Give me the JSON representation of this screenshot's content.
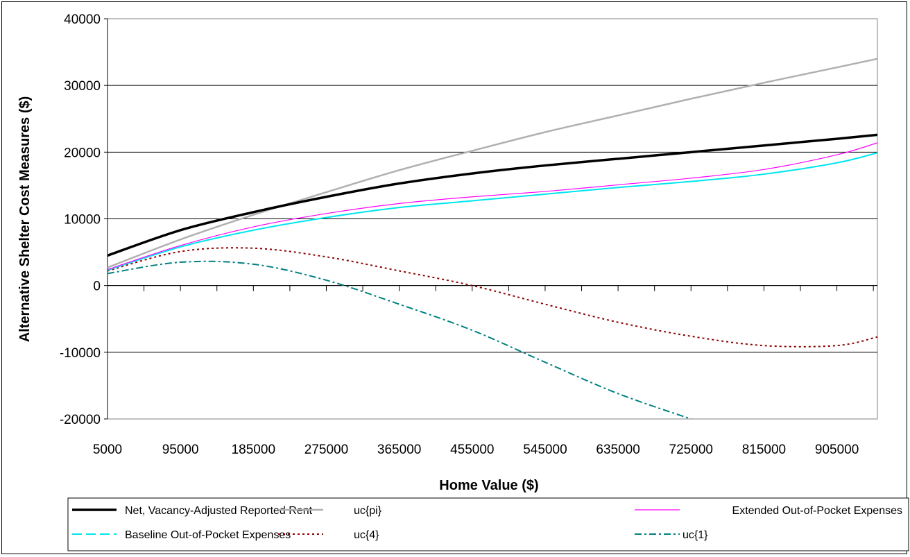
{
  "chart_data": {
    "type": "line",
    "xlabel": "Home Value ($)",
    "ylabel": "Alternative Shelter Cost Measures ($)",
    "xlim": [
      5000,
      955000
    ],
    "ylim": [
      -20000,
      40000
    ],
    "x_ticks": [
      5000,
      95000,
      185000,
      275000,
      365000,
      455000,
      545000,
      635000,
      725000,
      815000,
      905000
    ],
    "y_ticks": [
      -20000,
      -10000,
      0,
      10000,
      20000,
      30000,
      40000
    ],
    "x_tick_labels": [
      "5000",
      "95000",
      "185000",
      "275000",
      "365000",
      "455000",
      "545000",
      "635000",
      "725000",
      "815000",
      "905000"
    ],
    "y_tick_labels": [
      "-20000",
      "-10000",
      "0",
      "10000",
      "20000",
      "30000",
      "40000"
    ],
    "grid": "horizontal",
    "legend_position": "bottom",
    "series": [
      {
        "name": "Net, Vacancy-Adjusted Reported Rent",
        "color": "#000000",
        "dash": "solid",
        "width": 3.5,
        "points": [
          [
            5000,
            4500
          ],
          [
            95000,
            8300
          ],
          [
            185000,
            11000
          ],
          [
            275000,
            13300
          ],
          [
            365000,
            15300
          ],
          [
            455000,
            16800
          ],
          [
            545000,
            18000
          ],
          [
            635000,
            19000
          ],
          [
            725000,
            20000
          ],
          [
            815000,
            21000
          ],
          [
            905000,
            22000
          ],
          [
            955000,
            22600
          ]
        ]
      },
      {
        "name": "uc{pi}",
        "color": "#b0b0b0",
        "dash": "solid",
        "width": 2.5,
        "points": [
          [
            5000,
            2700
          ],
          [
            95000,
            6900
          ],
          [
            185000,
            10600
          ],
          [
            275000,
            14000
          ],
          [
            365000,
            17300
          ],
          [
            455000,
            20200
          ],
          [
            545000,
            23000
          ],
          [
            635000,
            25500
          ],
          [
            725000,
            28000
          ],
          [
            815000,
            30400
          ],
          [
            905000,
            32700
          ],
          [
            955000,
            34000
          ]
        ]
      },
      {
        "name": "Extended Out-of-Pocket Expenses",
        "color": "#ff00ff",
        "dash": "solid",
        "width": 1.2,
        "points": [
          [
            5000,
            2400
          ],
          [
            95000,
            6000
          ],
          [
            185000,
            8800
          ],
          [
            275000,
            10800
          ],
          [
            365000,
            12300
          ],
          [
            455000,
            13300
          ],
          [
            545000,
            14100
          ],
          [
            635000,
            15100
          ],
          [
            725000,
            16100
          ],
          [
            815000,
            17400
          ],
          [
            905000,
            19600
          ],
          [
            955000,
            21400
          ]
        ]
      },
      {
        "name": "Baseline Out-of-Pocket Expenses",
        "color": "#00e5ee",
        "dash": "solid",
        "width": 2,
        "points": [
          [
            5000,
            2300
          ],
          [
            95000,
            5800
          ],
          [
            185000,
            8300
          ],
          [
            275000,
            10200
          ],
          [
            365000,
            11700
          ],
          [
            455000,
            12700
          ],
          [
            545000,
            13700
          ],
          [
            635000,
            14700
          ],
          [
            725000,
            15600
          ],
          [
            815000,
            16700
          ],
          [
            905000,
            18400
          ],
          [
            955000,
            19900
          ]
        ]
      },
      {
        "name": "uc{4}",
        "color": "#8b0000",
        "dash": "dotted",
        "width": 2,
        "points": [
          [
            5000,
            2200
          ],
          [
            95000,
            5100
          ],
          [
            185000,
            5600
          ],
          [
            275000,
            4300
          ],
          [
            365000,
            2200
          ],
          [
            455000,
            0
          ],
          [
            545000,
            -2800
          ],
          [
            635000,
            -5500
          ],
          [
            725000,
            -7600
          ],
          [
            815000,
            -9000
          ],
          [
            905000,
            -9000
          ],
          [
            955000,
            -7700
          ]
        ]
      },
      {
        "name": "uc{1}",
        "color": "#008080",
        "dash": "dashdot",
        "width": 2,
        "points": [
          [
            5000,
            1800
          ],
          [
            95000,
            3500
          ],
          [
            185000,
            3200
          ],
          [
            275000,
            800
          ],
          [
            365000,
            -2800
          ],
          [
            455000,
            -6700
          ],
          [
            545000,
            -11500
          ],
          [
            635000,
            -16200
          ],
          [
            725000,
            -20000
          ]
        ]
      }
    ]
  }
}
